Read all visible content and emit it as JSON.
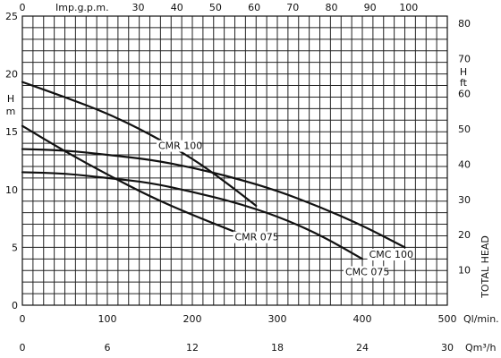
{
  "chart_data": {
    "type": "line",
    "x_axis": {
      "unit_label": "Ql/min.",
      "range": [
        0,
        500
      ],
      "ticks": [
        0,
        100,
        200,
        300,
        400,
        500
      ]
    },
    "x_axis_secondary": {
      "unit_label": "Qm³/h",
      "range": [
        0,
        30
      ],
      "ticks": [
        0,
        6,
        12,
        18,
        24,
        30
      ]
    },
    "x_axis_top": {
      "unit_label": "Imp.g.p.m.",
      "ticks": [
        0,
        30,
        40,
        50,
        60,
        70,
        80,
        90,
        100
      ]
    },
    "y_axis_left": {
      "label": "H\nm",
      "range": [
        0,
        25
      ],
      "ticks": [
        0,
        5,
        10,
        15,
        20,
        25
      ]
    },
    "y_axis_right": {
      "label": "H\nft",
      "title": "TOTAL HEAD",
      "ticks": [
        10,
        20,
        30,
        40,
        50,
        60,
        70,
        80
      ]
    },
    "grid": true,
    "series": [
      {
        "name": "CMR 100",
        "points": [
          [
            0,
            19.3
          ],
          [
            50,
            18.0
          ],
          [
            100,
            16.6
          ],
          [
            150,
            14.8
          ],
          [
            200,
            12.7
          ],
          [
            240,
            10.6
          ],
          [
            275,
            8.6
          ]
        ]
      },
      {
        "name": "CMR 075",
        "points": [
          [
            0,
            15.5
          ],
          [
            50,
            13.3
          ],
          [
            100,
            11.3
          ],
          [
            150,
            9.4
          ],
          [
            200,
            7.8
          ],
          [
            255,
            6.2
          ]
        ]
      },
      {
        "name": "CMC 100",
        "points": [
          [
            0,
            13.5
          ],
          [
            50,
            13.4
          ],
          [
            100,
            13.0
          ],
          [
            150,
            12.6
          ],
          [
            200,
            11.9
          ],
          [
            250,
            11.0
          ],
          [
            300,
            9.9
          ],
          [
            350,
            8.5
          ],
          [
            400,
            6.9
          ],
          [
            450,
            5.0
          ]
        ]
      },
      {
        "name": "CMC 075",
        "points": [
          [
            0,
            11.5
          ],
          [
            50,
            11.4
          ],
          [
            100,
            11.0
          ],
          [
            150,
            10.6
          ],
          [
            200,
            9.8
          ],
          [
            250,
            8.9
          ],
          [
            300,
            7.7
          ],
          [
            350,
            6.1
          ],
          [
            400,
            4.0
          ]
        ]
      }
    ]
  }
}
